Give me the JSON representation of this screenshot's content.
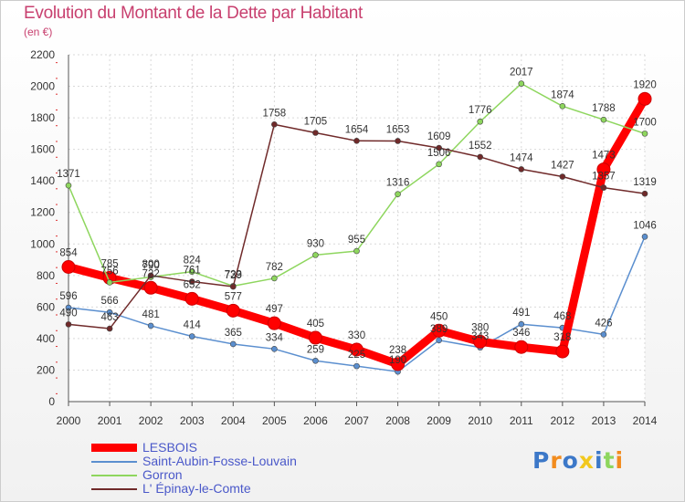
{
  "title": "Evolution du Montant de la Dette par Habitant",
  "subtitle": "(en €)",
  "brand": "Proxiti",
  "chart_data": {
    "type": "line",
    "title": "Evolution du Montant de la Dette par Habitant",
    "subtitle": "(en €)",
    "categories": [
      "2000",
      "2001",
      "2002",
      "2003",
      "2004",
      "2005",
      "2006",
      "2007",
      "2008",
      "2009",
      "2010",
      "2011",
      "2012",
      "2013",
      "2014"
    ],
    "ylim": [
      0,
      2200
    ],
    "yticks": [
      0,
      200,
      400,
      600,
      800,
      1000,
      1200,
      1400,
      1600,
      1800,
      2000,
      2200
    ],
    "grid": true,
    "legend_placement": "bottom-left",
    "series": [
      {
        "name": "LESBOIS",
        "color": "#ff0000",
        "values": [
          854,
          785,
          722,
          652,
          577,
          497,
          405,
          330,
          238,
          450,
          380,
          346,
          318,
          1473,
          1920
        ]
      },
      {
        "name": "Saint-Aubin-Fosse-Louvain",
        "color": "#5b8fcf",
        "values": [
          596,
          566,
          481,
          414,
          365,
          334,
          259,
          225,
          190,
          389,
          343,
          491,
          468,
          426,
          1046
        ]
      },
      {
        "name": "Gorron",
        "color": "#8ed65e",
        "values": [
          1371,
          756,
          790,
          824,
          733,
          782,
          930,
          955,
          1316,
          1506,
          1776,
          2017,
          1874,
          1788,
          1700
        ]
      },
      {
        "name": "L' Épinay-le-Comte",
        "color": "#702a2a",
        "values": [
          490,
          463,
          800,
          761,
          729,
          1758,
          1705,
          1654,
          1653,
          1609,
          1552,
          1474,
          1427,
          1357,
          1319
        ]
      }
    ]
  }
}
